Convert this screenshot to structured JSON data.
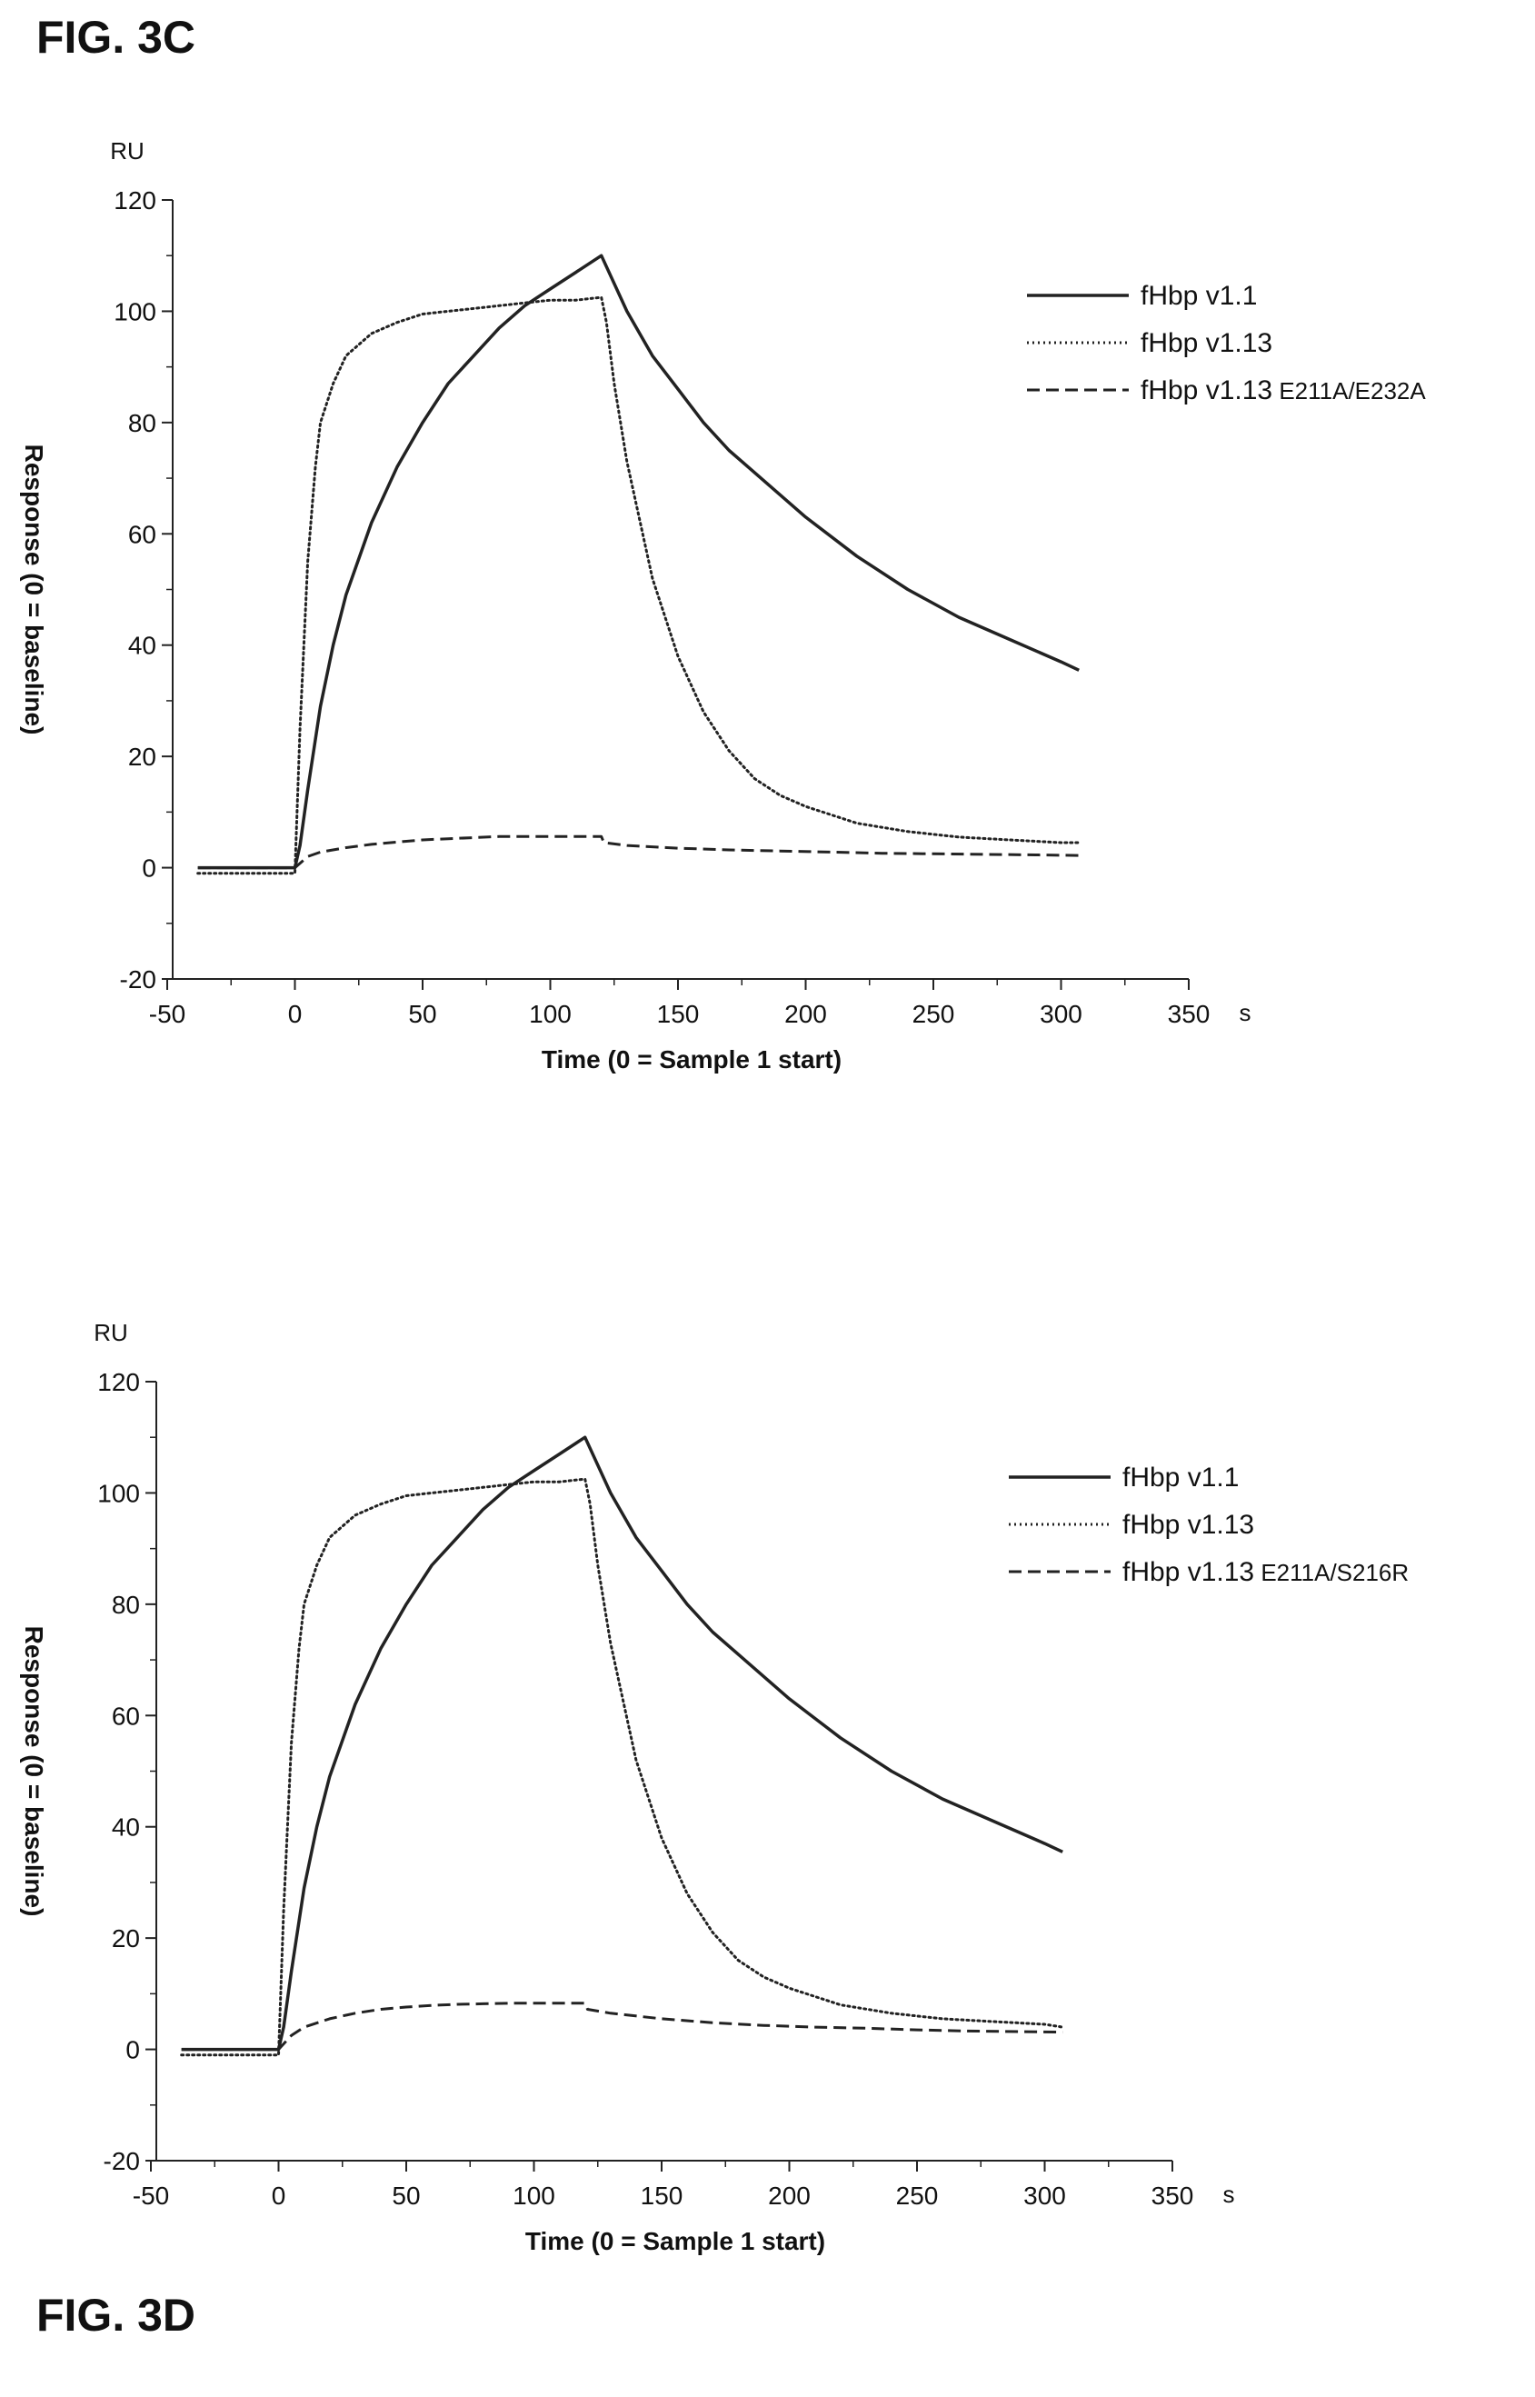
{
  "figures": {
    "top_label": "FIG. 3C",
    "bottom_label": "FIG. 3D"
  },
  "chart_data": [
    {
      "type": "line",
      "figure": "FIG. 3C",
      "xlabel": "Time (0 = Sample 1 start)",
      "x_unit": "s",
      "ylabel": "Response (0 = baseline)",
      "y_unit": "RU",
      "xlim": [
        -50,
        350
      ],
      "ylim": [
        -20,
        120
      ],
      "x_ticks": [
        -50,
        0,
        50,
        100,
        150,
        200,
        250,
        300,
        350
      ],
      "y_ticks": [
        -20,
        0,
        20,
        40,
        60,
        80,
        100,
        120
      ],
      "grid": false,
      "legend_position": "top-right",
      "series": [
        {
          "name": "fHbp v1.1",
          "name_base": "fHbp v1.1",
          "name_suffix": "",
          "style": "solid",
          "x": [
            -38,
            -20,
            -5,
            0,
            2,
            5,
            10,
            15,
            20,
            30,
            40,
            50,
            60,
            70,
            80,
            90,
            100,
            110,
            120,
            130,
            140,
            150,
            160,
            170,
            180,
            200,
            220,
            240,
            260,
            280,
            300,
            307
          ],
          "y": [
            0,
            0,
            0,
            0,
            4,
            14,
            29,
            40,
            49,
            62,
            72,
            80,
            87,
            92,
            97,
            101,
            104,
            107,
            110,
            100,
            92,
            86,
            80,
            75,
            71,
            63,
            56,
            50,
            45,
            41,
            37,
            35.5
          ]
        },
        {
          "name": "fHbp v1.13",
          "name_base": "fHbp v1.13",
          "name_suffix": "",
          "style": "dotted",
          "x": [
            -38,
            -20,
            -5,
            0,
            2,
            5,
            8,
            10,
            15,
            20,
            30,
            40,
            50,
            60,
            70,
            80,
            90,
            100,
            110,
            120,
            122,
            125,
            130,
            140,
            150,
            160,
            170,
            180,
            190,
            200,
            220,
            240,
            260,
            280,
            300,
            307
          ],
          "y": [
            -1,
            -1,
            -1,
            -1,
            25,
            55,
            72,
            80,
            87,
            92,
            96,
            98,
            99.5,
            100,
            100.5,
            101,
            101.5,
            102,
            102,
            102.5,
            98,
            87,
            73,
            52,
            38,
            28,
            21,
            16,
            13,
            11,
            8,
            6.5,
            5.5,
            5,
            4.5,
            4.5
          ]
        },
        {
          "name": "fHbp v1.13 E211A/E232A",
          "name_base": "fHbp v1.13",
          "name_suffix": "E211A/E232A",
          "style": "dashed",
          "x": [
            -38,
            -20,
            -5,
            0,
            5,
            10,
            20,
            30,
            40,
            50,
            60,
            70,
            80,
            90,
            100,
            110,
            120,
            121,
            130,
            150,
            170,
            190,
            210,
            230,
            250,
            270,
            290,
            307
          ],
          "y": [
            0,
            0,
            0,
            0,
            2,
            2.8,
            3.6,
            4.2,
            4.6,
            5,
            5.2,
            5.4,
            5.6,
            5.6,
            5.6,
            5.6,
            5.6,
            4.5,
            4,
            3.5,
            3.2,
            3,
            2.8,
            2.6,
            2.5,
            2.4,
            2.3,
            2.2
          ]
        }
      ]
    },
    {
      "type": "line",
      "figure": "FIG. 3D",
      "xlabel": "Time (0 = Sample 1 start)",
      "x_unit": "s",
      "ylabel": "Response (0 = baseline)",
      "y_unit": "RU",
      "xlim": [
        -50,
        350
      ],
      "ylim": [
        -20,
        120
      ],
      "x_ticks": [
        -50,
        0,
        50,
        100,
        150,
        200,
        250,
        300,
        350
      ],
      "y_ticks": [
        -20,
        0,
        20,
        40,
        60,
        80,
        100,
        120
      ],
      "grid": false,
      "legend_position": "top-right",
      "series": [
        {
          "name": "fHbp v1.1",
          "name_base": "fHbp v1.1",
          "name_suffix": "",
          "style": "solid",
          "x": [
            -38,
            -20,
            -5,
            0,
            2,
            5,
            10,
            15,
            20,
            30,
            40,
            50,
            60,
            70,
            80,
            90,
            100,
            110,
            120,
            130,
            140,
            150,
            160,
            170,
            180,
            200,
            220,
            240,
            260,
            280,
            300,
            307
          ],
          "y": [
            0,
            0,
            0,
            0,
            4,
            14,
            29,
            40,
            49,
            62,
            72,
            80,
            87,
            92,
            97,
            101,
            104,
            107,
            110,
            100,
            92,
            86,
            80,
            75,
            71,
            63,
            56,
            50,
            45,
            41,
            37,
            35.5
          ]
        },
        {
          "name": "fHbp v1.13",
          "name_base": "fHbp v1.13",
          "name_suffix": "",
          "style": "dotted",
          "x": [
            -38,
            -20,
            -5,
            0,
            2,
            5,
            8,
            10,
            15,
            20,
            30,
            40,
            50,
            60,
            70,
            80,
            90,
            100,
            110,
            120,
            122,
            125,
            130,
            140,
            150,
            160,
            170,
            180,
            190,
            200,
            220,
            240,
            260,
            280,
            300,
            307
          ],
          "y": [
            -1,
            -1,
            -1,
            -1,
            25,
            55,
            72,
            80,
            87,
            92,
            96,
            98,
            99.5,
            100,
            100.5,
            101,
            101.5,
            102,
            102,
            102.5,
            98,
            87,
            73,
            52,
            38,
            28,
            21,
            16,
            13,
            11,
            8,
            6.5,
            5.5,
            5,
            4.5,
            4
          ]
        },
        {
          "name": "fHbp v1.13 E211A/S216R",
          "name_base": "fHbp v1.13",
          "name_suffix": "E211A/S216R",
          "style": "dashed",
          "x": [
            -38,
            -20,
            -5,
            0,
            5,
            10,
            20,
            30,
            40,
            50,
            60,
            70,
            80,
            90,
            100,
            110,
            120,
            121,
            130,
            150,
            170,
            190,
            210,
            230,
            250,
            270,
            290,
            307
          ],
          "y": [
            0,
            0,
            0,
            0,
            2.5,
            4,
            5.5,
            6.5,
            7.2,
            7.6,
            7.9,
            8.1,
            8.2,
            8.3,
            8.3,
            8.3,
            8.3,
            7.2,
            6.5,
            5.5,
            4.8,
            4.3,
            4,
            3.8,
            3.5,
            3.3,
            3.2,
            3.1
          ]
        }
      ]
    }
  ]
}
